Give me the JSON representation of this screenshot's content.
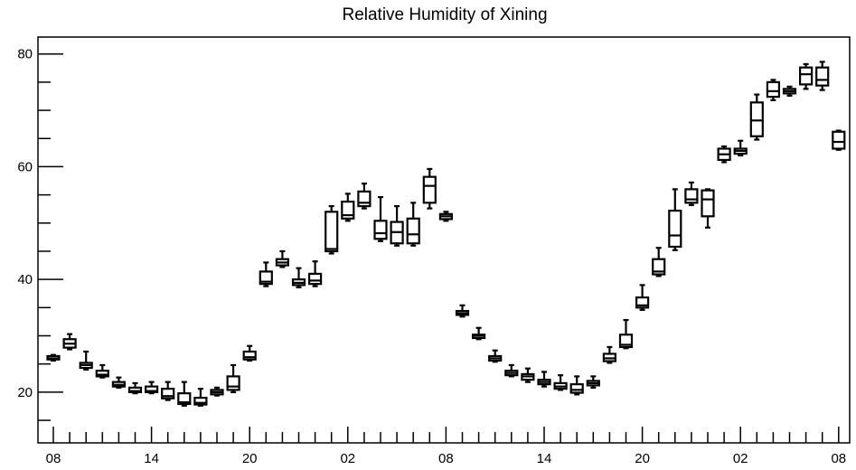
{
  "chart_data": {
    "type": "boxplot",
    "title": "Relative Humidity of Xining",
    "xlabel": "",
    "ylabel": "",
    "ylim": [
      11,
      83
    ],
    "y_ticks": [
      20,
      40,
      60,
      80
    ],
    "x_tick_labels": [
      "08",
      "14",
      "20",
      "02",
      "08",
      "14",
      "20",
      "02",
      "08"
    ],
    "x_tick_positions": [
      0,
      6,
      12,
      18,
      24,
      30,
      36,
      42,
      48
    ],
    "grid": false,
    "boxes": [
      {
        "x": 0,
        "min": 25.6,
        "q1": 25.8,
        "median": 26.0,
        "q3": 26.4,
        "max": 26.6
      },
      {
        "x": 1,
        "min": 27.6,
        "q1": 27.9,
        "median": 28.6,
        "q3": 29.4,
        "max": 30.3
      },
      {
        "x": 2,
        "min": 24.0,
        "q1": 24.3,
        "median": 24.8,
        "q3": 25.2,
        "max": 27.2
      },
      {
        "x": 3,
        "min": 22.6,
        "q1": 22.8,
        "median": 23.1,
        "q3": 23.8,
        "max": 24.8
      },
      {
        "x": 4,
        "min": 20.8,
        "q1": 21.0,
        "median": 21.3,
        "q3": 21.8,
        "max": 22.6
      },
      {
        "x": 5,
        "min": 19.8,
        "q1": 20.0,
        "median": 20.2,
        "q3": 20.8,
        "max": 21.6
      },
      {
        "x": 6,
        "min": 19.8,
        "q1": 20.0,
        "median": 20.2,
        "q3": 21.0,
        "max": 21.8
      },
      {
        "x": 7,
        "min": 18.6,
        "q1": 18.9,
        "median": 19.3,
        "q3": 20.6,
        "max": 21.8
      },
      {
        "x": 8,
        "min": 17.6,
        "q1": 17.9,
        "median": 18.2,
        "q3": 19.8,
        "max": 21.8
      },
      {
        "x": 9,
        "min": 17.6,
        "q1": 17.8,
        "median": 18.1,
        "q3": 19.0,
        "max": 20.6
      },
      {
        "x": 10,
        "min": 19.4,
        "q1": 19.6,
        "median": 20.0,
        "q3": 20.4,
        "max": 20.8
      },
      {
        "x": 11,
        "min": 20.0,
        "q1": 20.4,
        "median": 21.0,
        "q3": 22.8,
        "max": 24.8
      },
      {
        "x": 12,
        "min": 25.6,
        "q1": 25.8,
        "median": 26.2,
        "q3": 27.2,
        "max": 28.2
      },
      {
        "x": 13,
        "min": 38.8,
        "q1": 39.2,
        "median": 39.6,
        "q3": 41.4,
        "max": 43.0
      },
      {
        "x": 14,
        "min": 42.2,
        "q1": 42.5,
        "median": 43.0,
        "q3": 43.6,
        "max": 45.0
      },
      {
        "x": 15,
        "min": 38.6,
        "q1": 39.0,
        "median": 39.4,
        "q3": 40.0,
        "max": 42.0
      },
      {
        "x": 16,
        "min": 38.8,
        "q1": 39.2,
        "median": 39.8,
        "q3": 41.0,
        "max": 43.2
      },
      {
        "x": 17,
        "min": 44.6,
        "q1": 45.0,
        "median": 45.4,
        "q3": 52.0,
        "max": 53.0
      },
      {
        "x": 18,
        "min": 50.4,
        "q1": 50.8,
        "median": 51.4,
        "q3": 53.8,
        "max": 55.2
      },
      {
        "x": 19,
        "min": 52.6,
        "q1": 53.0,
        "median": 53.6,
        "q3": 55.6,
        "max": 57.0
      },
      {
        "x": 20,
        "min": 46.8,
        "q1": 47.2,
        "median": 48.2,
        "q3": 50.4,
        "max": 54.6
      },
      {
        "x": 21,
        "min": 46.0,
        "q1": 46.4,
        "median": 48.4,
        "q3": 50.2,
        "max": 53.0
      },
      {
        "x": 22,
        "min": 46.0,
        "q1": 46.4,
        "median": 48.0,
        "q3": 50.8,
        "max": 53.6
      },
      {
        "x": 23,
        "min": 52.6,
        "q1": 53.6,
        "median": 56.6,
        "q3": 58.2,
        "max": 59.6
      },
      {
        "x": 24,
        "min": 50.4,
        "q1": 50.7,
        "median": 51.2,
        "q3": 51.6,
        "max": 52.0
      },
      {
        "x": 25,
        "min": 33.4,
        "q1": 33.7,
        "median": 34.0,
        "q3": 34.4,
        "max": 35.4
      },
      {
        "x": 26,
        "min": 29.4,
        "q1": 29.6,
        "median": 30.0,
        "q3": 30.2,
        "max": 31.4
      },
      {
        "x": 27,
        "min": 25.4,
        "q1": 25.6,
        "median": 26.0,
        "q3": 26.4,
        "max": 27.4
      },
      {
        "x": 28,
        "min": 22.8,
        "q1": 23.0,
        "median": 23.4,
        "q3": 23.8,
        "max": 24.8
      },
      {
        "x": 29,
        "min": 21.8,
        "q1": 22.2,
        "median": 22.8,
        "q3": 23.2,
        "max": 24.2
      },
      {
        "x": 30,
        "min": 21.0,
        "q1": 21.4,
        "median": 21.8,
        "q3": 22.2,
        "max": 23.6
      },
      {
        "x": 31,
        "min": 20.4,
        "q1": 20.6,
        "median": 21.0,
        "q3": 21.6,
        "max": 23.0
      },
      {
        "x": 32,
        "min": 19.6,
        "q1": 19.9,
        "median": 20.4,
        "q3": 21.4,
        "max": 22.8
      },
      {
        "x": 33,
        "min": 20.8,
        "q1": 21.2,
        "median": 21.6,
        "q3": 22.0,
        "max": 22.8
      },
      {
        "x": 34,
        "min": 25.2,
        "q1": 25.5,
        "median": 26.0,
        "q3": 26.8,
        "max": 28.0
      },
      {
        "x": 35,
        "min": 27.8,
        "q1": 28.0,
        "median": 28.4,
        "q3": 30.2,
        "max": 32.8
      },
      {
        "x": 36,
        "min": 34.6,
        "q1": 35.0,
        "median": 35.4,
        "q3": 36.8,
        "max": 39.0
      },
      {
        "x": 37,
        "min": 40.6,
        "q1": 40.9,
        "median": 41.4,
        "q3": 43.6,
        "max": 45.6
      },
      {
        "x": 38,
        "min": 45.2,
        "q1": 45.8,
        "median": 47.8,
        "q3": 52.2,
        "max": 56.0
      },
      {
        "x": 39,
        "min": 53.2,
        "q1": 53.6,
        "median": 54.2,
        "q3": 56.0,
        "max": 57.2
      },
      {
        "x": 40,
        "min": 49.2,
        "q1": 51.2,
        "median": 54.2,
        "q3": 55.8,
        "max": 56.0
      },
      {
        "x": 41,
        "min": 60.8,
        "q1": 61.2,
        "median": 62.2,
        "q3": 63.2,
        "max": 63.6
      },
      {
        "x": 42,
        "min": 62.0,
        "q1": 62.3,
        "median": 62.8,
        "q3": 63.2,
        "max": 64.6
      },
      {
        "x": 43,
        "min": 64.8,
        "q1": 65.4,
        "median": 68.2,
        "q3": 71.4,
        "max": 72.8
      },
      {
        "x": 44,
        "min": 71.8,
        "q1": 72.4,
        "median": 73.4,
        "q3": 75.0,
        "max": 75.4
      },
      {
        "x": 45,
        "min": 72.6,
        "q1": 73.0,
        "median": 73.4,
        "q3": 73.8,
        "max": 74.2
      },
      {
        "x": 46,
        "min": 73.8,
        "q1": 74.6,
        "median": 76.4,
        "q3": 77.6,
        "max": 78.2
      },
      {
        "x": 47,
        "min": 73.6,
        "q1": 74.4,
        "median": 75.4,
        "q3": 77.6,
        "max": 78.6
      },
      {
        "x": 48,
        "min": 63.0,
        "q1": 63.2,
        "median": 64.4,
        "q3": 66.2,
        "max": 66.4
      }
    ]
  }
}
